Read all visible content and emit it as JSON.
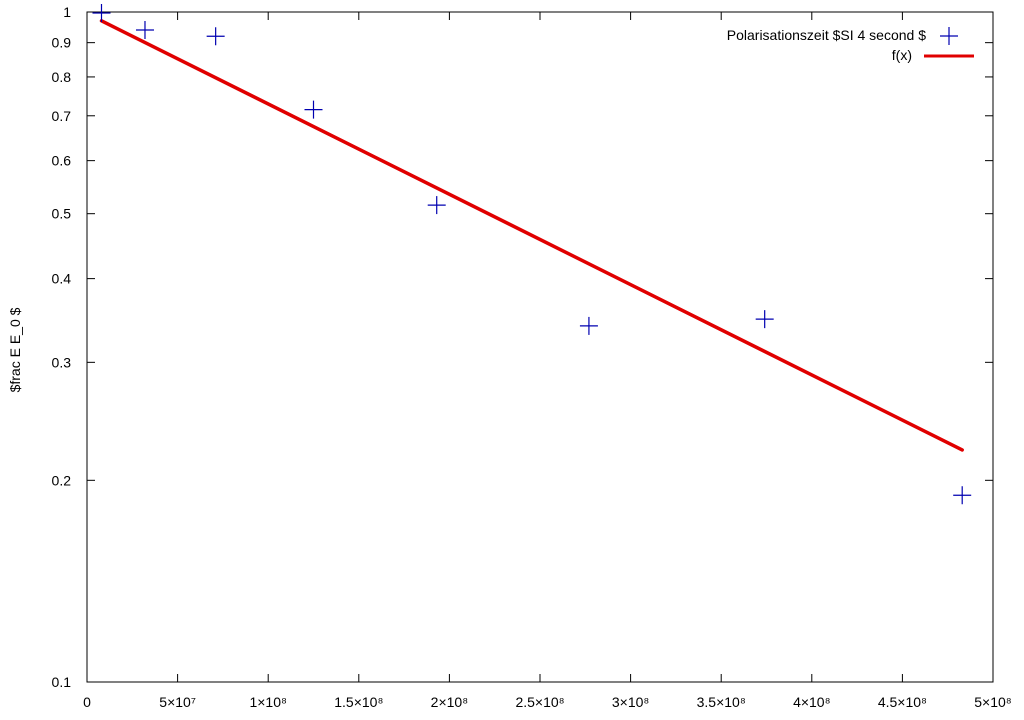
{
  "chart_data": {
    "type": "scatter",
    "title": "",
    "xlabel": "",
    "ylabel": "$frac E E_0 $",
    "x_scale": "linear",
    "y_scale": "log",
    "xlim": [
      0,
      500000000
    ],
    "ylim": [
      0.1,
      1
    ],
    "grid": false,
    "legend_position": "top-right",
    "x_ticks": [
      {
        "value": 0,
        "label": "0"
      },
      {
        "value": 50000000,
        "label": "5×10⁷"
      },
      {
        "value": 100000000,
        "label": "1×10⁸"
      },
      {
        "value": 150000000,
        "label": "1.5×10⁸"
      },
      {
        "value": 200000000,
        "label": "2×10⁸"
      },
      {
        "value": 250000000,
        "label": "2.5×10⁸"
      },
      {
        "value": 300000000,
        "label": "3×10⁸"
      },
      {
        "value": 350000000,
        "label": "3.5×10⁸"
      },
      {
        "value": 400000000,
        "label": "4×10⁸"
      },
      {
        "value": 450000000,
        "label": "4.5×10⁸"
      },
      {
        "value": 500000000,
        "label": "5×10⁸"
      }
    ],
    "y_ticks": [
      {
        "value": 0.1,
        "label": "0.1"
      },
      {
        "value": 0.2,
        "label": "0.2"
      },
      {
        "value": 0.3,
        "label": "0.3"
      },
      {
        "value": 0.4,
        "label": "0.4"
      },
      {
        "value": 0.5,
        "label": "0.5"
      },
      {
        "value": 0.6,
        "label": "0.6"
      },
      {
        "value": 0.7,
        "label": "0.7"
      },
      {
        "value": 0.8,
        "label": "0.8"
      },
      {
        "value": 0.9,
        "label": "0.9"
      },
      {
        "value": 1,
        "label": "1"
      }
    ],
    "series": [
      {
        "name": "Polarisationszeit $SI 4 second $",
        "kind": "points",
        "marker": "plus",
        "color": "#0000b0",
        "points": [
          {
            "x": 8000000,
            "y": 1.0
          },
          {
            "x": 32000000,
            "y": 0.94
          },
          {
            "x": 71000000,
            "y": 0.92
          },
          {
            "x": 125000000,
            "y": 0.715
          },
          {
            "x": 193000000,
            "y": 0.515
          },
          {
            "x": 277000000,
            "y": 0.34
          },
          {
            "x": 374000000,
            "y": 0.348
          },
          {
            "x": 483000000,
            "y": 0.19
          }
        ]
      },
      {
        "name": "f(x)",
        "kind": "line",
        "color": "#e00000",
        "x_start": 8000000,
        "x_end": 483000000,
        "y_start": 0.97,
        "y_end": 0.222
      }
    ]
  }
}
